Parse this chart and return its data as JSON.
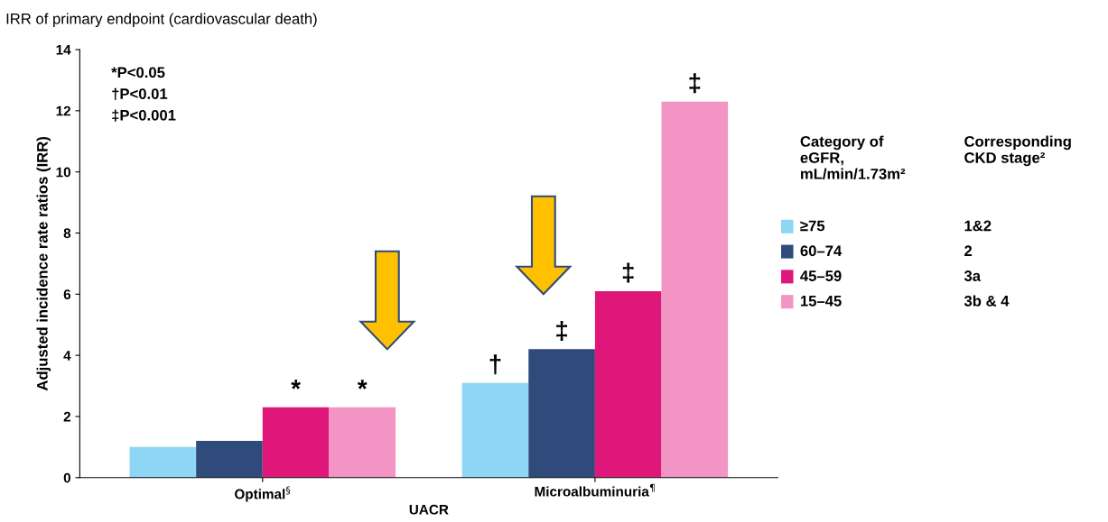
{
  "chart_data": {
    "type": "bar",
    "title": "IRR of primary endpoint (cardiovascular death)",
    "xlabel": "UACR",
    "ylabel": "Adjusted incidence rate ratios (IRR)",
    "categories": [
      "Optimal$^{§}$",
      "Microalbuminuria$^{¶}$"
    ],
    "series": [
      {
        "name": "≥75",
        "color": "#8dd6f5",
        "values": [
          1.0,
          3.1
        ],
        "value_labels": [
          null,
          "†"
        ]
      },
      {
        "name": "60–74",
        "color": "#2e4b7c",
        "values": [
          1.2,
          4.2
        ],
        "value_labels": [
          null,
          "‡"
        ]
      },
      {
        "name": "45–59",
        "color": "#e0177a",
        "values": [
          2.3,
          6.1
        ],
        "value_labels": [
          "*",
          "‡"
        ]
      },
      {
        "name": "15–45",
        "color": "#f395c4",
        "values": [
          2.3,
          12.3
        ],
        "value_labels": [
          "*",
          "‡"
        ]
      }
    ],
    "ylim": [
      0,
      14
    ],
    "yticks": [
      0,
      2,
      4,
      6,
      8,
      10,
      12,
      14
    ],
    "grid": false,
    "legend": "right",
    "legend_title": "Category of\neGFR,\nmL/min/1.73m²",
    "annotations": [
      "*P<0.05",
      "†P<0.01",
      "‡P<0.001",
      "Corresponding\nCKD stage²",
      "1&2",
      "2",
      "3a",
      "3b & 4"
    ]
  }
}
